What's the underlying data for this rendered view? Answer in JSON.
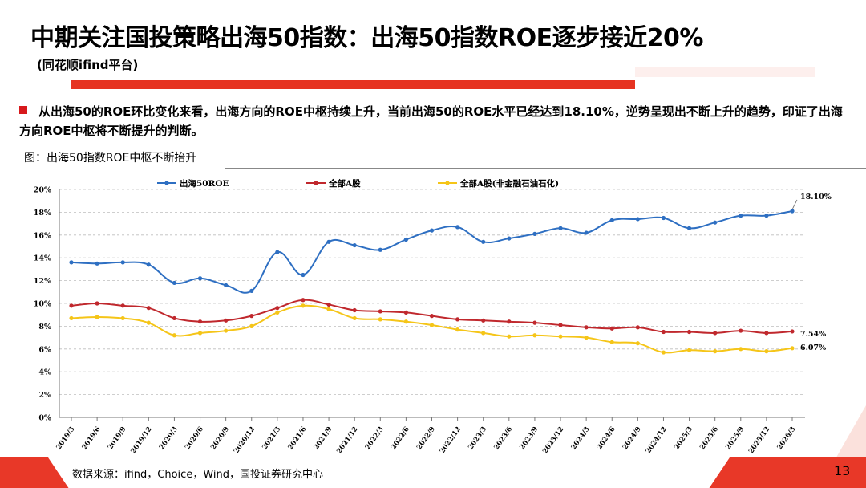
{
  "header": {
    "title": "中期关注国投策略出海50指数：出海50指数ROE逐步接近20%",
    "subtitle": "(同花顺ifind平台)"
  },
  "bullet": {
    "text": "从出海50的ROE环比变化来看，出海方向的ROE中枢持续上升，当前出海50的ROE水平已经达到18.10%，逆势呈现出不断上升的趋势，印证了出海方向ROE中枢将不断提升的判断。"
  },
  "figure": {
    "caption": "图：出海50指数ROE中枢不断抬升"
  },
  "footer": {
    "source": "数据来源：ifind，Choice，Wind，国投证券研究中心",
    "page": "13"
  },
  "colors": {
    "accent": "#e63321",
    "series1": "#2e6fc2",
    "series2": "#c0282d",
    "series3": "#f5c518"
  },
  "chart_data": {
    "type": "line",
    "title": "",
    "xlabel": "",
    "ylabel": "",
    "ylim": [
      0,
      20
    ],
    "yticks": [
      "0%",
      "2%",
      "4%",
      "6%",
      "8%",
      "10%",
      "12%",
      "14%",
      "16%",
      "18%",
      "20%"
    ],
    "grid": true,
    "legend": "top",
    "categories": [
      "2019/3",
      "2019/6",
      "2019/9",
      "2019/12",
      "2020/3",
      "2020/6",
      "2020/9",
      "2020/12",
      "2021/3",
      "2021/6",
      "2021/9",
      "2021/12",
      "2022/3",
      "2022/6",
      "2022/9",
      "2022/12",
      "2023/3",
      "2023/6",
      "2023/9",
      "2023/12",
      "2024/3",
      "2024/6",
      "2024/9",
      "2024/12",
      "2025/3",
      "2025/6",
      "2025/9",
      "2025/12",
      "2026/3"
    ],
    "series": [
      {
        "name": "出海50ROE",
        "color": "#2e6fc2",
        "values": [
          13.6,
          13.5,
          13.6,
          13.4,
          11.8,
          12.2,
          11.6,
          11.1,
          14.5,
          12.5,
          15.4,
          15.1,
          14.7,
          15.6,
          16.4,
          16.7,
          15.4,
          15.7,
          16.1,
          16.6,
          16.2,
          17.3,
          17.4,
          17.5,
          16.6,
          17.1,
          17.7,
          17.7,
          18.1
        ],
        "end_label": "18.10%"
      },
      {
        "name": "全部A股",
        "color": "#c0282d",
        "values": [
          9.8,
          10.0,
          9.8,
          9.6,
          8.7,
          8.4,
          8.5,
          8.9,
          9.6,
          10.3,
          9.9,
          9.4,
          9.3,
          9.2,
          8.9,
          8.6,
          8.5,
          8.4,
          8.3,
          8.1,
          7.9,
          7.8,
          7.9,
          7.5,
          7.5,
          7.4,
          7.6,
          7.4,
          7.54
        ],
        "end_label": "7.54%"
      },
      {
        "name": "全部A股(非金融石油石化)",
        "color": "#f5c518",
        "values": [
          8.7,
          8.8,
          8.7,
          8.3,
          7.2,
          7.4,
          7.6,
          8.0,
          9.2,
          9.8,
          9.5,
          8.7,
          8.6,
          8.4,
          8.1,
          7.7,
          7.4,
          7.1,
          7.2,
          7.1,
          7.0,
          6.6,
          6.5,
          5.7,
          5.9,
          5.8,
          6.0,
          5.8,
          6.07
        ],
        "end_label": "6.07%"
      }
    ]
  }
}
